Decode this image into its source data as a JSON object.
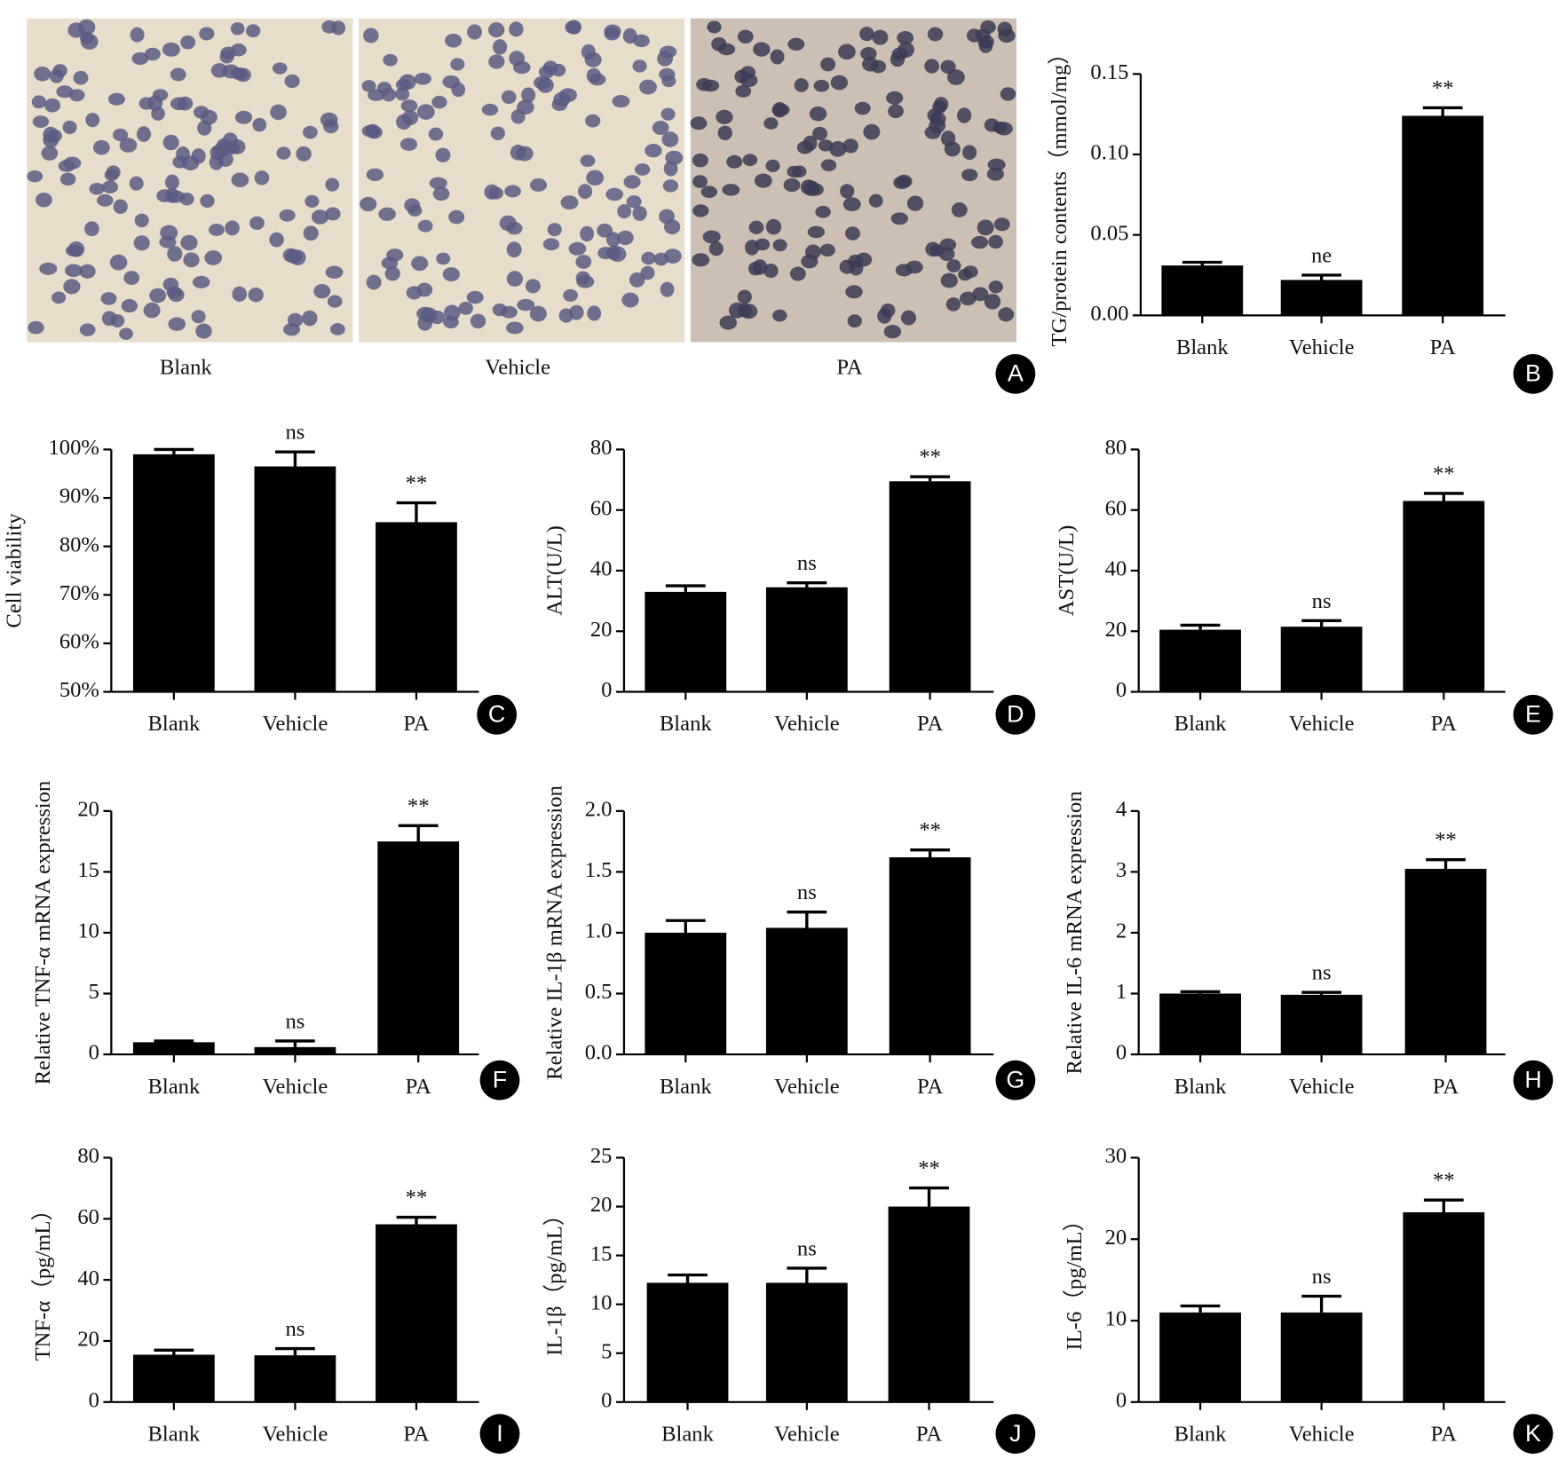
{
  "panel_a": {
    "labels": [
      "Blank",
      "Vehicle",
      "PA"
    ],
    "letter": "A"
  },
  "chart_data": [
    {
      "type": "bar",
      "panel": "B",
      "y_label": "TG/protein contents（mmol/mg）",
      "categories": [
        "Blank",
        "Vehicle",
        "PA"
      ],
      "values": [
        0.031,
        0.022,
        0.124
      ],
      "errors": [
        0.002,
        0.003,
        0.005
      ],
      "annotations": [
        null,
        "ne",
        "**"
      ],
      "color": "#000000",
      "ylim": [
        0,
        0.15
      ],
      "yticks": [
        {
          "value": 0,
          "label": "0.00"
        },
        {
          "value": 0.05,
          "label": "0.05"
        },
        {
          "value": 0.1,
          "label": "0.10"
        },
        {
          "value": 0.15,
          "label": "0.15"
        }
      ]
    },
    {
      "type": "bar",
      "panel": "C",
      "y_label": "Cell viability",
      "categories": [
        "Blank",
        "Vehicle",
        "PA"
      ],
      "values": [
        99,
        96.5,
        85
      ],
      "errors": [
        1,
        3,
        4
      ],
      "annotations": [
        null,
        "ns",
        "**"
      ],
      "color": "#000000",
      "ylim": [
        50,
        100
      ],
      "yticks": [
        {
          "value": 50,
          "label": "50%"
        },
        {
          "value": 60,
          "label": "60%"
        },
        {
          "value": 70,
          "label": "70%"
        },
        {
          "value": 80,
          "label": "80%"
        },
        {
          "value": 90,
          "label": "90%"
        },
        {
          "value": 100,
          "label": "100%"
        }
      ]
    },
    {
      "type": "bar",
      "panel": "D",
      "y_label": "ALT(U/L)",
      "categories": [
        "Blank",
        "Vehicle",
        "PA"
      ],
      "values": [
        33,
        34.5,
        69.5
      ],
      "errors": [
        2,
        1.5,
        1.5
      ],
      "annotations": [
        null,
        "ns",
        "**"
      ],
      "color": "#000000",
      "ylim": [
        0,
        80
      ],
      "yticks": [
        0,
        20,
        40,
        60,
        80
      ]
    },
    {
      "type": "bar",
      "panel": "E",
      "y_label": "AST(U/L)",
      "categories": [
        "Blank",
        "Vehicle",
        "PA"
      ],
      "values": [
        20.5,
        21.5,
        63
      ],
      "errors": [
        1.5,
        2,
        2.5
      ],
      "annotations": [
        null,
        "ns",
        "**"
      ],
      "color": "#000000",
      "ylim": [
        0,
        80
      ],
      "yticks": [
        0,
        20,
        40,
        60,
        80
      ]
    },
    {
      "type": "bar",
      "panel": "F",
      "y_label": "Relative TNF-α mRNA expression",
      "categories": [
        "Blank",
        "Vehicle",
        "PA"
      ],
      "values": [
        1,
        0.6,
        17.5
      ],
      "errors": [
        0.1,
        0.5,
        1.3
      ],
      "annotations": [
        null,
        "ns",
        "**"
      ],
      "color": "#000000",
      "ylim": [
        0,
        20
      ],
      "yticks": [
        0,
        5,
        10,
        15,
        20
      ]
    },
    {
      "type": "bar",
      "panel": "G",
      "y_label": "Relative IL-1β mRNA expression",
      "categories": [
        "Blank",
        "Vehicle",
        "PA"
      ],
      "values": [
        1.0,
        1.04,
        1.62
      ],
      "errors": [
        0.1,
        0.13,
        0.06
      ],
      "annotations": [
        null,
        "ns",
        "**"
      ],
      "color": "#000000",
      "ylim": [
        0,
        2
      ],
      "yticks": [
        {
          "value": 0,
          "label": "0.0"
        },
        {
          "value": 0.5,
          "label": "0.5"
        },
        {
          "value": 1,
          "label": "1.0"
        },
        {
          "value": 1.5,
          "label": "1.5"
        },
        {
          "value": 2,
          "label": "2.0"
        }
      ]
    },
    {
      "type": "bar",
      "panel": "H",
      "y_label": "Relative IL-6 mRNA expression",
      "categories": [
        "Blank",
        "Vehicle",
        "PA"
      ],
      "values": [
        1.0,
        0.98,
        3.05
      ],
      "errors": [
        0.03,
        0.04,
        0.15
      ],
      "annotations": [
        null,
        "ns",
        "**"
      ],
      "color": "#000000",
      "ylim": [
        0,
        4
      ],
      "yticks": [
        0,
        1,
        2,
        3,
        4
      ]
    },
    {
      "type": "bar",
      "panel": "I",
      "y_label": "TNF-α（pg/mL）",
      "categories": [
        "Blank",
        "Vehicle",
        "PA"
      ],
      "values": [
        15.5,
        15.3,
        58.2
      ],
      "errors": [
        1.5,
        2.2,
        2.3
      ],
      "annotations": [
        null,
        "ns",
        "**"
      ],
      "color": "#000000",
      "ylim": [
        0,
        80
      ],
      "yticks": [
        0,
        20,
        40,
        60,
        80
      ]
    },
    {
      "type": "bar",
      "panel": "J",
      "y_label": "IL-1β（pg/mL）",
      "categories": [
        "Blank",
        "Vehicle",
        "PA"
      ],
      "values": [
        12.2,
        12.2,
        20
      ],
      "errors": [
        0.8,
        1.5,
        1.9
      ],
      "annotations": [
        null,
        "ns",
        "**"
      ],
      "color": "#000000",
      "ylim": [
        0,
        25
      ],
      "yticks": [
        0,
        5,
        10,
        15,
        20,
        25
      ]
    },
    {
      "type": "bar",
      "panel": "K",
      "y_label": "IL-6（pg/mL）",
      "categories": [
        "Blank",
        "Vehicle",
        "PA"
      ],
      "values": [
        11,
        11,
        23.3
      ],
      "errors": [
        0.8,
        2,
        1.5
      ],
      "annotations": [
        null,
        "ns",
        "**"
      ],
      "color": "#000000",
      "ylim": [
        0,
        30
      ],
      "yticks": [
        0,
        10,
        20,
        30
      ]
    }
  ]
}
